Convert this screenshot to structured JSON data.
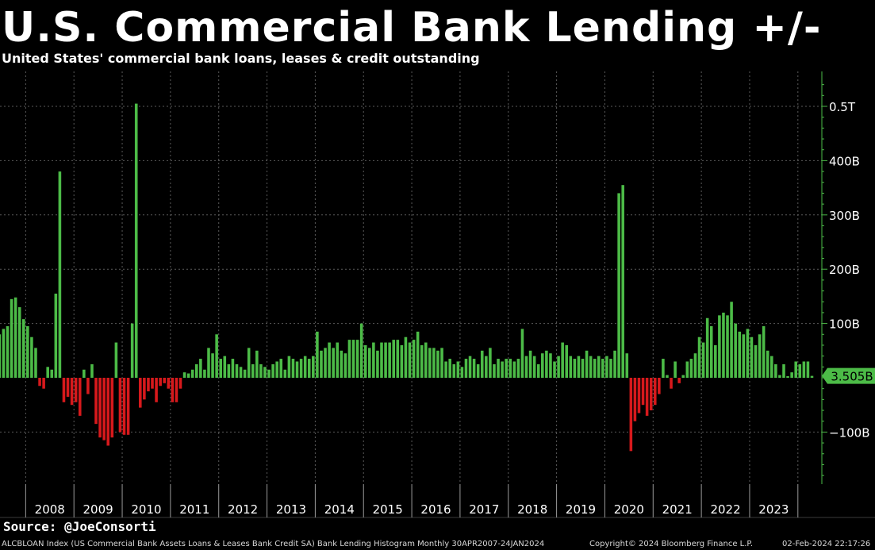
{
  "header": {
    "title": "U.S. Commercial Bank Lending +/-",
    "subtitle": "United States' commercial bank loans, leases & credit outstanding"
  },
  "footer": {
    "source": "Source: @JoeConsorti",
    "index_info": "ALCBLOAN Index (US Commercial Bank Assets Loans & Leases Bank Credit SA) Bank Lending Histogram  Monthly 30APR2007-24JAN2024",
    "copyright": "Copyright© 2024 Bloomberg Finance L.P.",
    "timestamp": "02-Feb-2024 22:17:26"
  },
  "colors": {
    "background": "#000000",
    "positive": "#4cbb47",
    "negative": "#d7191c",
    "axis": "#4cbb47",
    "grid": "#5a5a5a",
    "last_value_badge": "#4cbb47"
  },
  "chart_data": {
    "type": "bar",
    "title": "U.S. Commercial Bank Lending +/-",
    "subtitle": "United States' commercial bank loans, leases & credit outstanding",
    "units": "USD billions",
    "x_start": "2007-05",
    "frequency": "monthly",
    "years": [
      "2008",
      "2009",
      "2010",
      "2011",
      "2012",
      "2013",
      "2014",
      "2015",
      "2016",
      "2017",
      "2018",
      "2019",
      "2020",
      "2021",
      "2022",
      "2023"
    ],
    "y_ticks": [
      {
        "value": 500,
        "label": "0.5T"
      },
      {
        "value": 400,
        "label": "400B"
      },
      {
        "value": 300,
        "label": "300B"
      },
      {
        "value": 200,
        "label": "200B"
      },
      {
        "value": 100,
        "label": "100B"
      },
      {
        "value": -100,
        "label": "−100B"
      }
    ],
    "ylim": [
      -195,
      560
    ],
    "grid": true,
    "last_value": 3.505,
    "last_value_label": "3.505B",
    "values": [
      90,
      80,
      90,
      95,
      145,
      148,
      130,
      108,
      95,
      75,
      55,
      -15,
      -20,
      20,
      15,
      155,
      380,
      -45,
      -35,
      -50,
      -45,
      -70,
      15,
      -30,
      25,
      -85,
      -110,
      -115,
      -125,
      -110,
      65,
      -100,
      -105,
      -105,
      100,
      505,
      -55,
      -40,
      -25,
      -20,
      -45,
      -15,
      -10,
      -20,
      -45,
      -45,
      -20,
      10,
      8,
      15,
      25,
      35,
      15,
      55,
      45,
      80,
      35,
      40,
      25,
      35,
      25,
      20,
      15,
      55,
      25,
      50,
      25,
      20,
      15,
      25,
      30,
      35,
      15,
      40,
      35,
      30,
      35,
      40,
      35,
      40,
      85,
      50,
      55,
      65,
      55,
      65,
      50,
      45,
      70,
      70,
      70,
      100,
      60,
      55,
      65,
      50,
      65,
      65,
      65,
      70,
      70,
      60,
      75,
      65,
      70,
      85,
      60,
      65,
      55,
      55,
      50,
      55,
      30,
      35,
      25,
      30,
      20,
      35,
      40,
      35,
      25,
      50,
      40,
      55,
      25,
      35,
      30,
      35,
      35,
      30,
      35,
      90,
      40,
      50,
      40,
      25,
      45,
      50,
      45,
      30,
      40,
      65,
      60,
      40,
      35,
      40,
      35,
      50,
      40,
      35,
      40,
      35,
      40,
      35,
      50,
      340,
      355,
      45,
      -135,
      -80,
      -65,
      -50,
      -70,
      -60,
      -50,
      -30,
      35,
      5,
      -20,
      30,
      -10,
      5,
      30,
      35,
      45,
      75,
      65,
      110,
      95,
      60,
      115,
      120,
      115,
      140,
      100,
      85,
      80,
      90,
      75,
      60,
      80,
      95,
      50,
      40,
      25,
      5,
      25,
      3,
      10,
      30,
      25,
      30,
      30,
      3.505
    ]
  }
}
